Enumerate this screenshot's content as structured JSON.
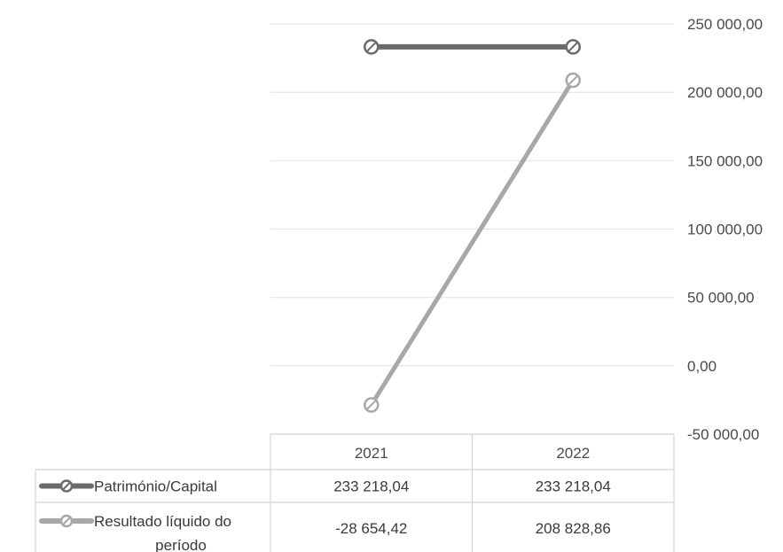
{
  "chart_data": {
    "type": "line",
    "categories": [
      "2021",
      "2022"
    ],
    "series": [
      {
        "name": "Património/Capital",
        "values": [
          233218.04,
          233218.04
        ],
        "value_labels": [
          "233 218,04",
          "233 218,04"
        ],
        "color": "#6a6a6a"
      },
      {
        "name_lines": [
          "Resultado líquido do",
          "período"
        ],
        "values": [
          -28654.42,
          208828.86
        ],
        "value_labels": [
          "-28 654,42",
          "208 828,86"
        ],
        "color": "#a8a8a8"
      }
    ],
    "ylim": [
      -50000,
      250000
    ],
    "yticks": [
      250000,
      200000,
      150000,
      100000,
      50000,
      0,
      -50000
    ],
    "ytick_labels": [
      "250 000,00",
      "200 000,00",
      "150 000,00",
      "100 000,00",
      "50 000,00",
      "0,00",
      "-50 000,00"
    ],
    "grid": true,
    "legend": "data-table"
  }
}
